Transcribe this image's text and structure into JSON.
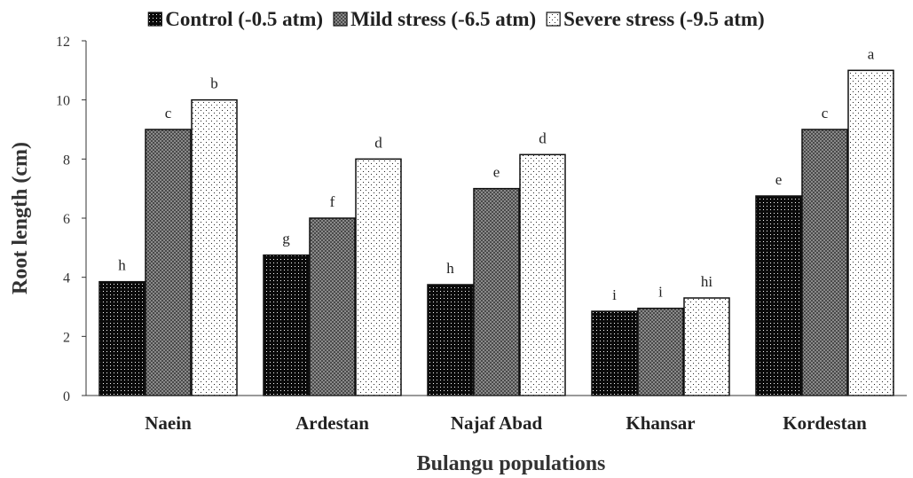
{
  "chart_data": {
    "type": "bar",
    "title": "",
    "xlabel": "Bulangu populations",
    "ylabel": "Root length (cm)",
    "ylim": [
      0,
      12
    ],
    "yticks": [
      0,
      2,
      4,
      6,
      8,
      10,
      12
    ],
    "grid": false,
    "legend_position": "top",
    "categories": [
      "Naein",
      "Ardestan",
      "Najaf Abad",
      "Khansar",
      "Kordestan"
    ],
    "series": [
      {
        "name": "Control (-0.5 atm)",
        "pattern": "dark-dotted",
        "values": [
          3.85,
          4.75,
          3.75,
          2.85,
          6.75
        ],
        "letters": [
          "h",
          "g",
          "h",
          "i",
          "e"
        ]
      },
      {
        "name": "Mild stress (-6.5 atm)",
        "pattern": "gray-checkered",
        "values": [
          9.0,
          6.0,
          7.0,
          2.95,
          9.0
        ],
        "letters": [
          "c",
          "f",
          "e",
          "i",
          "c"
        ]
      },
      {
        "name": "Severe stress (-9.5 atm)",
        "pattern": "white-dotted",
        "values": [
          10.0,
          8.0,
          8.15,
          3.3,
          11.0
        ],
        "letters": [
          "b",
          "d",
          "d",
          "hi",
          "a"
        ]
      }
    ]
  }
}
